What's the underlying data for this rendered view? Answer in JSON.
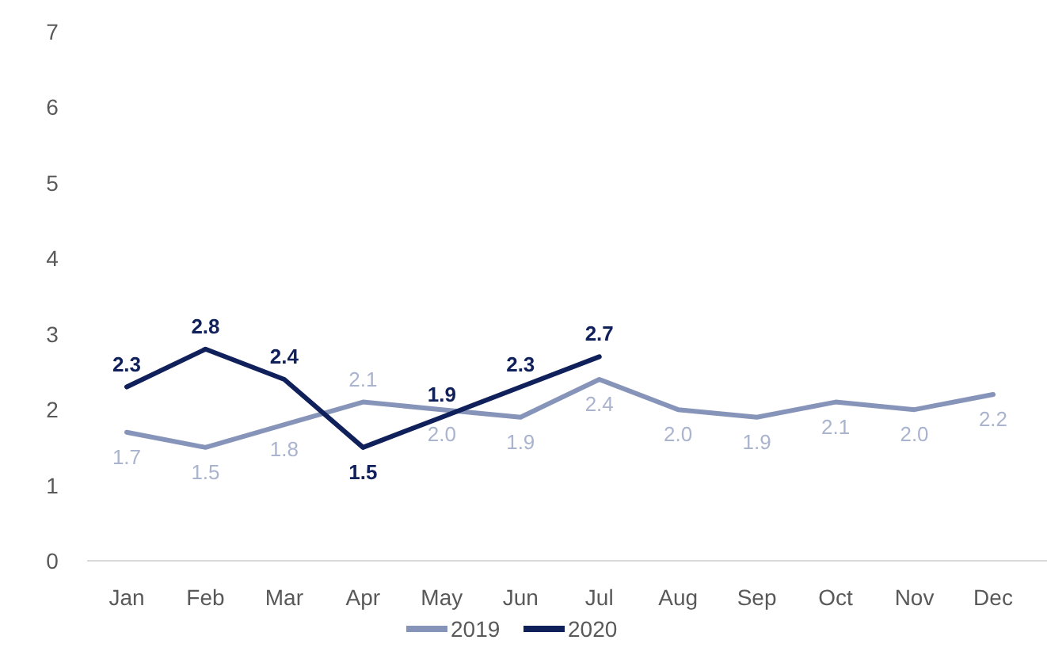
{
  "chart_data": {
    "type": "line",
    "categories": [
      "Jan",
      "Feb",
      "Mar",
      "Apr",
      "May",
      "Jun",
      "Jul",
      "Aug",
      "Sep",
      "Oct",
      "Nov",
      "Dec"
    ],
    "series": [
      {
        "name": "2019",
        "color": "#8794b9",
        "values": [
          1.7,
          1.5,
          1.8,
          2.1,
          2.0,
          1.9,
          2.4,
          2.0,
          1.9,
          2.1,
          2.0,
          2.2
        ],
        "value_labels": [
          "1.7",
          "1.5",
          "1.8",
          "2.1",
          "2.0",
          "1.9",
          "2.4",
          "2.0",
          "1.9",
          "2.1",
          "2.0",
          "2.2"
        ]
      },
      {
        "name": "2020",
        "color": "#10205a",
        "values": [
          2.3,
          2.8,
          2.4,
          1.5,
          1.9,
          2.3,
          2.7,
          null,
          null,
          null,
          null,
          null
        ],
        "value_labels": [
          "2.3",
          "2.8",
          "2.4",
          "1.5",
          "1.9",
          "2.3",
          "2.7",
          null,
          null,
          null,
          null,
          null
        ]
      }
    ],
    "ylim": [
      0,
      7
    ],
    "yticks": [
      0,
      1,
      2,
      3,
      4,
      5,
      6,
      7
    ],
    "grid": false,
    "legend": "bottom",
    "marker": "none",
    "line_style": "solid"
  }
}
